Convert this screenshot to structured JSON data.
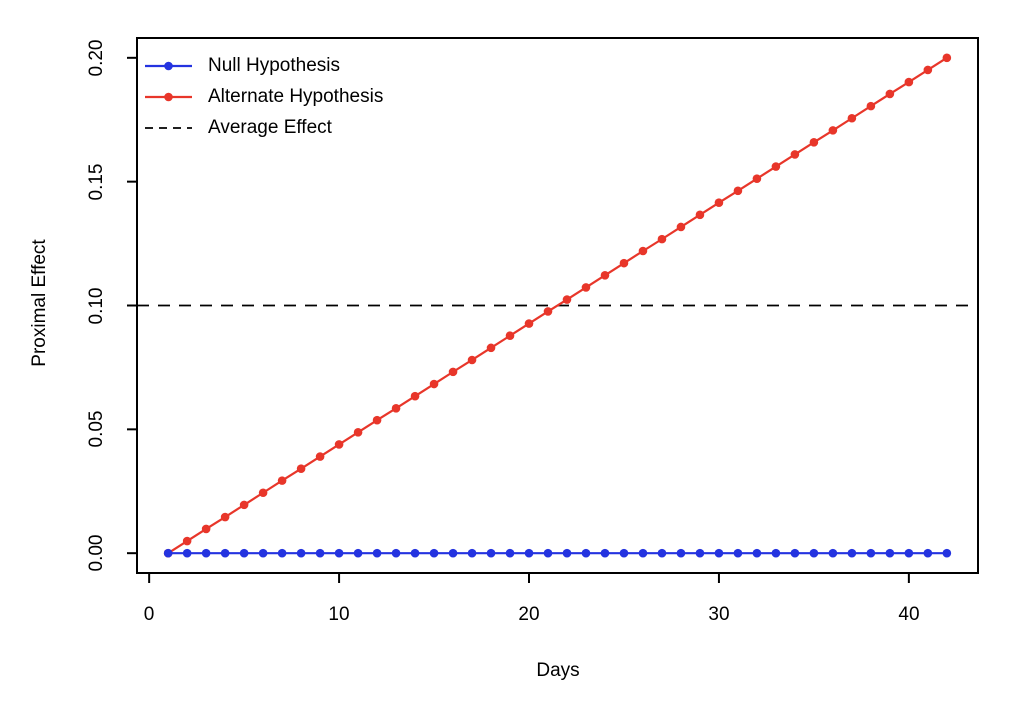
{
  "figure": {
    "background": "#ffffff",
    "frame_color": "#000000",
    "text_color": "#000000"
  },
  "chart_data": {
    "type": "line",
    "title": "",
    "xlabel": "Days",
    "ylabel": "Proximal Effect",
    "xlim": [
      -0.64,
      43.64
    ],
    "ylim": [
      -0.008,
      0.208
    ],
    "grid": false,
    "x_ticks": [
      0,
      10,
      20,
      30,
      40
    ],
    "x_tick_labels": [
      "0",
      "10",
      "20",
      "30",
      "40"
    ],
    "y_ticks": [
      0,
      0.05,
      0.1,
      0.15,
      0.2
    ],
    "y_tick_labels": [
      "0.00",
      "0.05",
      "0.10",
      "0.15",
      "0.20"
    ],
    "x": [
      1,
      2,
      3,
      4,
      5,
      6,
      7,
      8,
      9,
      10,
      11,
      12,
      13,
      14,
      15,
      16,
      17,
      18,
      19,
      20,
      21,
      22,
      23,
      24,
      25,
      26,
      27,
      28,
      29,
      30,
      31,
      32,
      33,
      34,
      35,
      36,
      37,
      38,
      39,
      40,
      41,
      42
    ],
    "series": [
      {
        "name": "Null Hypothesis",
        "color": "#2433e0",
        "marker": "circle",
        "line_style": "solid",
        "values": [
          0,
          0,
          0,
          0,
          0,
          0,
          0,
          0,
          0,
          0,
          0,
          0,
          0,
          0,
          0,
          0,
          0,
          0,
          0,
          0,
          0,
          0,
          0,
          0,
          0,
          0,
          0,
          0,
          0,
          0,
          0,
          0,
          0,
          0,
          0,
          0,
          0,
          0,
          0,
          0,
          0,
          0
        ]
      },
      {
        "name": "Alternate Hypothesis",
        "color": "#e8362a",
        "marker": "circle",
        "line_style": "solid",
        "values": [
          0,
          0.0049,
          0.0098,
          0.0146,
          0.0195,
          0.0244,
          0.0293,
          0.0341,
          0.039,
          0.0439,
          0.0488,
          0.0537,
          0.0585,
          0.0634,
          0.0683,
          0.0732,
          0.078,
          0.0829,
          0.0878,
          0.0927,
          0.0976,
          0.1024,
          0.1073,
          0.1122,
          0.1171,
          0.122,
          0.1268,
          0.1317,
          0.1366,
          0.1415,
          0.1463,
          0.1512,
          0.1561,
          0.161,
          0.1659,
          0.1707,
          0.1756,
          0.1805,
          0.1854,
          0.1902,
          0.1951,
          0.2
        ]
      }
    ],
    "reference_line": {
      "name": "Average Effect",
      "value": 0.1,
      "style": "dashed",
      "color": "#000000"
    },
    "legend": {
      "position": "top-left",
      "box": false,
      "entries": [
        {
          "label": "Null Hypothesis",
          "swatch": "line-marker",
          "color": "#2433e0"
        },
        {
          "label": "Alternate Hypothesis",
          "swatch": "line-marker",
          "color": "#e8362a"
        },
        {
          "label": "Average Effect",
          "swatch": "dashed-line",
          "color": "#000000"
        }
      ]
    }
  }
}
